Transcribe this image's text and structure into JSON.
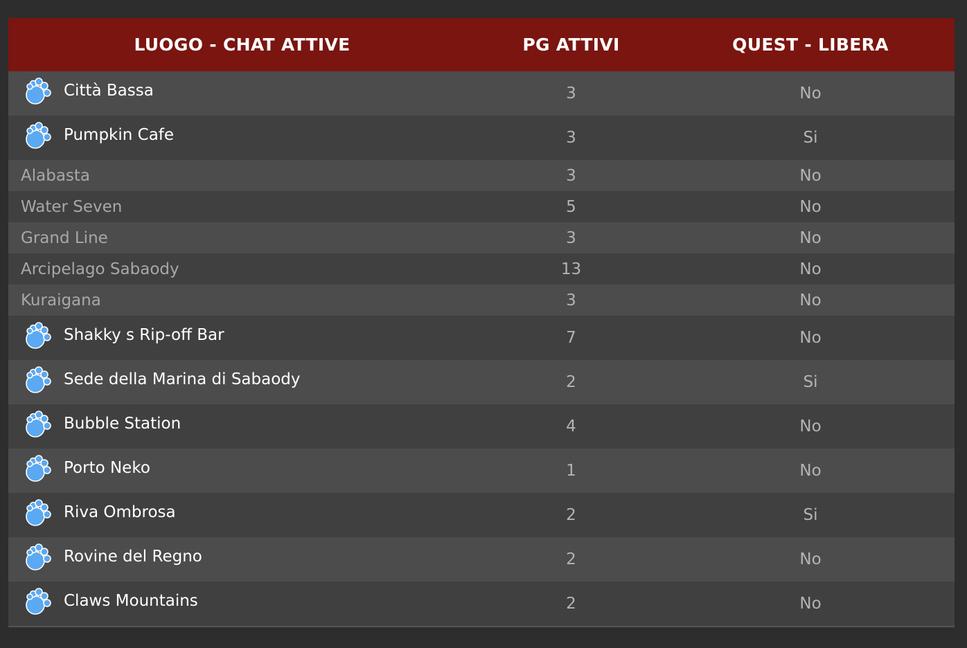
{
  "header": {
    "col_place": "LUOGO - CHAT ATTIVE",
    "col_players": "PG ATTIVI",
    "col_quest": "QUEST - LIBERA"
  },
  "accent_color": "#7a1510",
  "rows": [
    {
      "name": "Città Bassa",
      "players": "3",
      "quest": "No",
      "icon": "paw-bubble-icon"
    },
    {
      "name": "Pumpkin Cafe",
      "players": "3",
      "quest": "Si",
      "icon": "paw-bubble-icon"
    },
    {
      "name": "Alabasta",
      "players": "3",
      "quest": "No"
    },
    {
      "name": "Water Seven",
      "players": "5",
      "quest": "No"
    },
    {
      "name": "Grand Line",
      "players": "3",
      "quest": "No"
    },
    {
      "name": "Arcipelago Sabaody",
      "players": "13",
      "quest": "No"
    },
    {
      "name": "Kuraigana",
      "players": "3",
      "quest": "No"
    },
    {
      "name": "Shakky    s Rip-off Bar",
      "players": "7",
      "quest": "No",
      "icon": "paw-bubble-icon"
    },
    {
      "name": "Sede della Marina di Sabaody",
      "players": "2",
      "quest": "Si",
      "icon": "paw-bubble-icon"
    },
    {
      "name": "Bubble Station",
      "players": "4",
      "quest": "No",
      "icon": "paw-bubble-icon"
    },
    {
      "name": "Porto Neko",
      "players": "1",
      "quest": "No",
      "icon": "paw-bubble-icon"
    },
    {
      "name": "Riva Ombrosa",
      "players": "2",
      "quest": "Si",
      "icon": "paw-bubble-icon"
    },
    {
      "name": "Rovine del Regno",
      "players": "2",
      "quest": "No",
      "icon": "paw-bubble-icon"
    },
    {
      "name": "Claws Mountains",
      "players": "2",
      "quest": "No",
      "icon": "paw-bubble-icon"
    }
  ]
}
